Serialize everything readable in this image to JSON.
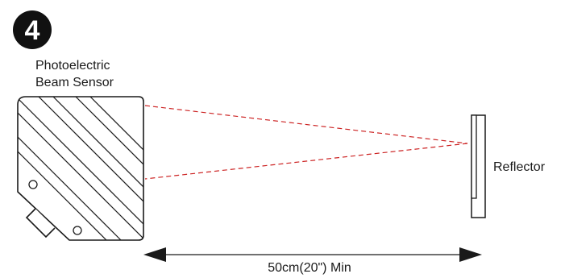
{
  "step": {
    "number": "4"
  },
  "labels": {
    "sensor_line1": "Photoelectric",
    "sensor_line2": "Beam Sensor",
    "reflector": "Reflector",
    "distance": "50cm(20\") Min"
  },
  "colors": {
    "beam": "#cc2222",
    "outline": "#1a1a1a",
    "badge": "#111111"
  }
}
